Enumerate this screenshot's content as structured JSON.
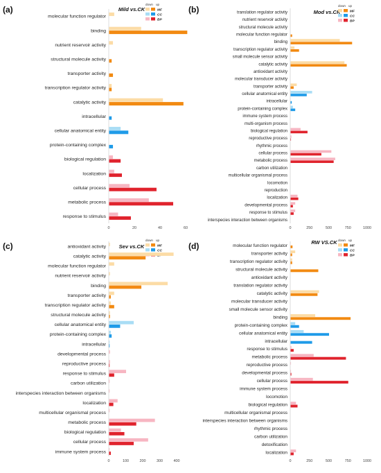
{
  "figure": {
    "colors": {
      "MF_down": "#fcdca6",
      "MF_up": "#f28a12",
      "CC_down": "#a9ddf5",
      "CC_up": "#1f9be8",
      "BP_down": "#f7b6c2",
      "BP_up": "#e0232d"
    }
  },
  "chart_data": [
    {
      "type": "bar",
      "orientation": "horizontal",
      "panel_label": "(a)",
      "title": "Mild vs.CK",
      "legend": {
        "header_down": "down",
        "header_up": "up",
        "entries": [
          "MF",
          "CC",
          "BP"
        ],
        "placement": "top-right"
      },
      "xlim": [
        0,
        60
      ],
      "xticks": [
        "0",
        "20",
        "40",
        "60"
      ],
      "categories": [
        "molecular function regulator",
        "binding",
        "nutrient reservoir activity",
        "structural molecule activity",
        "transporter activity",
        "transcription regulator activity",
        "catalytic activity",
        "intracellular",
        "cellular anatomical entity",
        "protein-containing complex",
        "biological regulation",
        "localization",
        "cellular process",
        "metabolic process",
        "response to stimulus"
      ],
      "groups": [
        "MF",
        "MF",
        "MF",
        "MF",
        "MF",
        "MF",
        "MF",
        "CC",
        "CC",
        "CC",
        "BP",
        "BP",
        "BP",
        "BP",
        "BP"
      ],
      "down": [
        4,
        25,
        3,
        0,
        0,
        2,
        42,
        0,
        9,
        0,
        3,
        4,
        16,
        31,
        7
      ],
      "up": [
        0,
        61,
        0,
        2,
        3,
        2,
        58,
        2,
        15,
        3,
        9,
        10,
        37,
        50,
        17
      ]
    },
    {
      "type": "bar",
      "orientation": "horizontal",
      "panel_label": "(b)",
      "title": "Mod vs.CK",
      "legend": {
        "header_down": "down",
        "header_up": "up",
        "entries": [
          "MF",
          "CC",
          "BP"
        ],
        "placement": "top-right"
      },
      "xlim": [
        0,
        1000
      ],
      "xticks": [
        "0",
        "250",
        "500",
        "750",
        "1000"
      ],
      "categories": [
        "translation regulator activity",
        "nutrient reservoir activity",
        "structural molecule activity",
        "molecular function regulator",
        "binding",
        "transcription regulator activity",
        "small molecule sensor activity",
        "catalytic activity",
        "antioxidant activity",
        "molecular transducer activity",
        "transporter activity",
        "cellular anatomical entity",
        "intracellular",
        "protein-containing complex",
        "immune system process",
        "multi-organism process",
        "biological regulation",
        "reproductive process",
        "rhythmic process",
        "cellular process",
        "metabolic process",
        "carbon utilization",
        "multicellular organismal process",
        "locomotion",
        "reproduction",
        "localization",
        "developmental process",
        "response to stimulus",
        "interspecies interaction between organisms"
      ],
      "groups": [
        "MF",
        "MF",
        "MF",
        "MF",
        "MF",
        "MF",
        "MF",
        "MF",
        "MF",
        "MF",
        "MF",
        "CC",
        "CC",
        "CC",
        "BP",
        "BP",
        "BP",
        "BP",
        "BP",
        "BP",
        "BP",
        "BP",
        "BP",
        "BP",
        "BP",
        "BP",
        "BP",
        "BP",
        "BP"
      ],
      "down": [
        0,
        0,
        0,
        0,
        640,
        50,
        0,
        700,
        0,
        0,
        80,
        280,
        0,
        30,
        0,
        0,
        130,
        10,
        0,
        530,
        580,
        0,
        0,
        0,
        0,
        90,
        60,
        60,
        0
      ],
      "up": [
        0,
        0,
        0,
        20,
        800,
        110,
        0,
        730,
        0,
        0,
        40,
        210,
        15,
        60,
        0,
        0,
        220,
        5,
        0,
        400,
        560,
        0,
        0,
        0,
        0,
        100,
        30,
        40,
        0
      ]
    },
    {
      "type": "bar",
      "orientation": "horizontal",
      "panel_label": "(c)",
      "title": "Sev vs.CK",
      "legend": {
        "header_down": "down",
        "header_up": "up",
        "entries": [
          "MF",
          "CC",
          "BP"
        ],
        "placement": "top-right"
      },
      "xlim": [
        0,
        400
      ],
      "xticks": [
        "0",
        "100",
        "200",
        "300",
        "400"
      ],
      "categories": [
        "antioxidant activity",
        "catalytic activity",
        "molecular function regulator",
        "nutrient reservoir activity",
        "binding",
        "transporter activity",
        "transcription regulator activity",
        "structural molecule activity",
        "cellular anatomical entity",
        "protein-containing complex",
        "intracellular",
        "developmental process",
        "reproductive process",
        "response to stimulus",
        "carbon utilization",
        "interspecies interaction between organisms",
        "localization",
        "multicellular organismal process",
        "metabolic process",
        "biological regulation",
        "cellular process",
        "immune system process"
      ],
      "groups": [
        "MF",
        "MF",
        "MF",
        "MF",
        "MF",
        "MF",
        "MF",
        "MF",
        "CC",
        "CC",
        "CC",
        "BP",
        "BP",
        "BP",
        "BP",
        "BP",
        "BP",
        "BP",
        "BP",
        "BP",
        "BP",
        "BP"
      ],
      "down": [
        5,
        380,
        30,
        5,
        345,
        30,
        10,
        5,
        145,
        10,
        3,
        5,
        5,
        100,
        3,
        3,
        50,
        3,
        270,
        70,
        230,
        3
      ],
      "up": [
        0,
        215,
        0,
        0,
        190,
        10,
        30,
        5,
        65,
        15,
        3,
        0,
        3,
        30,
        0,
        0,
        25,
        0,
        160,
        90,
        145,
        10
      ]
    },
    {
      "type": "bar",
      "orientation": "horizontal",
      "panel_label": "(d)",
      "title": "RW VS.CK",
      "legend": {
        "header_down": "down",
        "header_up": "up",
        "entries": [
          "MF",
          "CC",
          "BP"
        ],
        "placement": "top-right"
      },
      "xlim": [
        0,
        1000
      ],
      "xticks": [
        "0",
        "250",
        "500",
        "750",
        "1000"
      ],
      "categories": [
        "molecular function regulator",
        "transporter activity",
        "transcription regulator activity",
        "structural molecule activity",
        "antioxidant activity",
        "translation regulator activity",
        "catalytic activity",
        "molecular transducer activity",
        "small molecule sensor activity",
        "binding",
        "protein-containing complex",
        "cellular anatomical entity",
        "intracellular",
        "response to stimulus",
        "metabolic process",
        "reproductive process",
        "developmental process",
        "cellular process",
        "immune system process",
        "locomotion",
        "biological regulation",
        "multicellular organismal process",
        "interspecies interaction between organisms",
        "rhythmic process",
        "carbon utilization",
        "detoxification",
        "localization"
      ],
      "groups": [
        "MF",
        "MF",
        "MF",
        "MF",
        "MF",
        "MF",
        "MF",
        "MF",
        "MF",
        "MF",
        "CC",
        "CC",
        "CC",
        "BP",
        "BP",
        "BP",
        "BP",
        "BP",
        "BP",
        "BP",
        "BP",
        "BP",
        "BP",
        "BP",
        "BP",
        "BP",
        "BP"
      ],
      "down": [
        0,
        60,
        20,
        0,
        0,
        0,
        370,
        0,
        0,
        320,
        60,
        170,
        0,
        10,
        300,
        5,
        5,
        290,
        0,
        0,
        70,
        0,
        0,
        0,
        0,
        0,
        70
      ],
      "up": [
        25,
        20,
        20,
        360,
        0,
        0,
        350,
        0,
        0,
        780,
        110,
        500,
        280,
        40,
        720,
        0,
        10,
        750,
        0,
        0,
        90,
        0,
        0,
        0,
        0,
        0,
        40
      ]
    }
  ]
}
